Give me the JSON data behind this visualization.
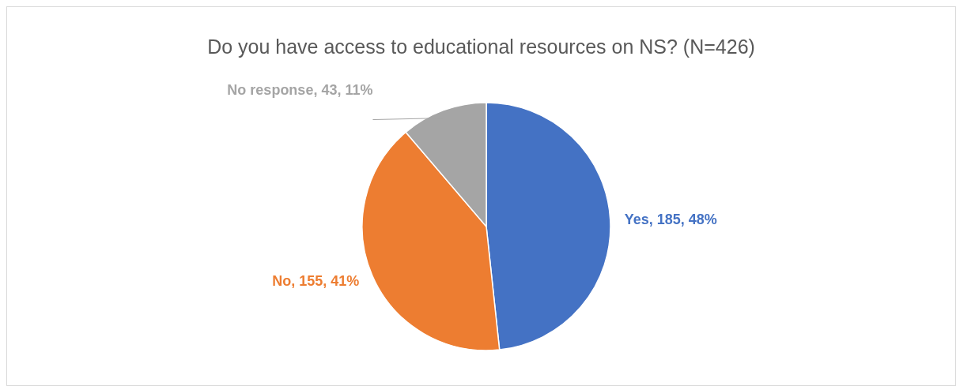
{
  "chart_data": {
    "type": "pie",
    "title": "Do you have access to educational resources on NS? (N=426)",
    "categories": [
      "Yes",
      "No",
      "No response"
    ],
    "values": [
      185,
      155,
      43
    ],
    "colors": [
      "#4472c4",
      "#ed7d31",
      "#a5a5a5"
    ],
    "value_labels": [
      "185, 48%",
      "155, 41%",
      "43, 11%"
    ],
    "legend": false
  }
}
